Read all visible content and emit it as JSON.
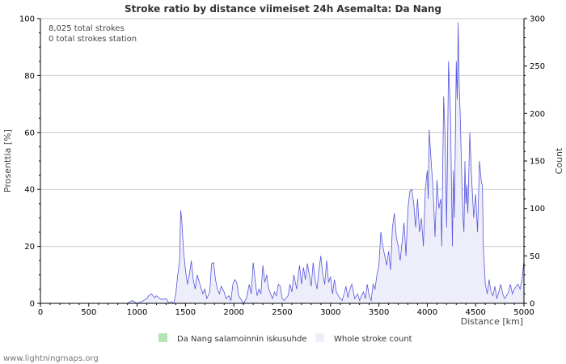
{
  "chart_data": {
    "type": "area",
    "title": "Stroke ratio by distance viimeiset 24h Asemalta: Da Nang",
    "xlabel": "Distance   [km]",
    "ylabel_left": "Prosenttia   [%]",
    "ylabel_right": "Count",
    "xlim": [
      0,
      5000
    ],
    "ylim_left": [
      0,
      100
    ],
    "ylim_right": [
      0,
      300
    ],
    "x_ticks": [
      0,
      500,
      1000,
      1500,
      2000,
      2500,
      3000,
      3500,
      4000,
      4500,
      5000
    ],
    "x_tick_labels": [
      "0",
      "500",
      "1000",
      "1500",
      "2000",
      "2500",
      "3000",
      "3500",
      "4000",
      "4500",
      "5000"
    ],
    "y_left_ticks": [
      0,
      20,
      40,
      60,
      80,
      100
    ],
    "y_left_tick_labels": [
      "0",
      "20",
      "40",
      "60",
      "80",
      "100"
    ],
    "y_right_ticks": [
      0,
      50,
      100,
      150,
      200,
      250,
      300
    ],
    "y_right_tick_labels": [
      "0",
      "50",
      "100",
      "150",
      "200",
      "250",
      "300"
    ],
    "grid": true,
    "annotations": [
      "8,025 total strokes",
      "0 total strokes station"
    ],
    "series": [
      {
        "name": "Da Nang salamoinnin iskusuhde",
        "axis": "left",
        "color": "#a8dca8",
        "x": [],
        "values": []
      },
      {
        "name": "Whole stroke count",
        "axis": "right",
        "color": "#5555dd",
        "fill": "#eeeefa",
        "x": [
          0,
          900,
          950,
          1000,
          1050,
          1100,
          1120,
          1150,
          1180,
          1200,
          1250,
          1300,
          1330,
          1350,
          1380,
          1400,
          1420,
          1440,
          1450,
          1460,
          1480,
          1500,
          1520,
          1540,
          1560,
          1580,
          1600,
          1620,
          1650,
          1680,
          1700,
          1720,
          1750,
          1770,
          1790,
          1810,
          1830,
          1850,
          1870,
          1900,
          1920,
          1950,
          1970,
          1990,
          2010,
          2030,
          2050,
          2100,
          2130,
          2160,
          2180,
          2200,
          2220,
          2240,
          2260,
          2280,
          2300,
          2320,
          2340,
          2360,
          2400,
          2420,
          2440,
          2460,
          2480,
          2500,
          2520,
          2560,
          2580,
          2600,
          2620,
          2650,
          2680,
          2700,
          2720,
          2740,
          2760,
          2780,
          2800,
          2820,
          2840,
          2860,
          2880,
          2900,
          2920,
          2940,
          2960,
          2980,
          3000,
          3020,
          3040,
          3060,
          3080,
          3100,
          3120,
          3140,
          3160,
          3180,
          3200,
          3220,
          3250,
          3280,
          3300,
          3320,
          3340,
          3360,
          3380,
          3400,
          3420,
          3440,
          3460,
          3480,
          3500,
          3520,
          3540,
          3560,
          3580,
          3600,
          3620,
          3640,
          3660,
          3680,
          3700,
          3720,
          3740,
          3760,
          3780,
          3800,
          3820,
          3840,
          3860,
          3880,
          3900,
          3920,
          3940,
          3960,
          3980,
          4000,
          4010,
          4020,
          4040,
          4060,
          4080,
          4100,
          4120,
          4140,
          4150,
          4160,
          4170,
          4180,
          4190,
          4200,
          4210,
          4220,
          4240,
          4260,
          4270,
          4280,
          4290,
          4300,
          4310,
          4320,
          4330,
          4340,
          4360,
          4370,
          4380,
          4390,
          4400,
          4410,
          4420,
          4440,
          4460,
          4480,
          4500,
          4520,
          4540,
          4560,
          4570,
          4580,
          4600,
          4620,
          4640,
          4660,
          4680,
          4700,
          4720,
          4740,
          4760,
          4780,
          4800,
          4820,
          4840,
          4860,
          4880,
          4900,
          4920,
          4940,
          4960,
          4980,
          5000
        ],
        "values": [
          0,
          0,
          3,
          0,
          2,
          5,
          8,
          10,
          6,
          8,
          4,
          5,
          0,
          2,
          0,
          10,
          30,
          45,
          98,
          90,
          55,
          35,
          20,
          30,
          45,
          25,
          15,
          30,
          20,
          10,
          15,
          5,
          12,
          42,
          43,
          25,
          15,
          10,
          18,
          12,
          5,
          8,
          3,
          20,
          25,
          22,
          8,
          0,
          5,
          20,
          10,
          43,
          25,
          8,
          15,
          10,
          40,
          22,
          30,
          15,
          5,
          12,
          8,
          20,
          18,
          5,
          3,
          8,
          20,
          12,
          30,
          15,
          40,
          20,
          38,
          25,
          42,
          30,
          18,
          43,
          25,
          15,
          35,
          50,
          30,
          20,
          45,
          22,
          28,
          10,
          25,
          12,
          8,
          5,
          3,
          10,
          18,
          6,
          15,
          20,
          5,
          10,
          3,
          8,
          12,
          5,
          20,
          8,
          3,
          20,
          15,
          30,
          40,
          75,
          60,
          50,
          40,
          55,
          35,
          80,
          95,
          70,
          60,
          45,
          65,
          85,
          50,
          100,
          118,
          120,
          105,
          80,
          110,
          75,
          90,
          60,
          120,
          140,
          110,
          183,
          150,
          120,
          70,
          130,
          100,
          110,
          60,
          140,
          218,
          190,
          150,
          80,
          160,
          255,
          200,
          60,
          140,
          90,
          170,
          255,
          215,
          296,
          230,
          200,
          120,
          90,
          75,
          150,
          105,
          125,
          95,
          180,
          130,
          90,
          115,
          75,
          150,
          127,
          125,
          60,
          20,
          10,
          25,
          12,
          8,
          18,
          5,
          12,
          20,
          10,
          5,
          8,
          12,
          20,
          10,
          15,
          18,
          20,
          15,
          25,
          45
        ]
      }
    ]
  },
  "legend": {
    "items": [
      {
        "label": "Da Nang salamoinnin iskusuhde",
        "color": "#b4e4b4"
      },
      {
        "label": "Whole stroke count",
        "color": "#eeeefa"
      }
    ]
  },
  "footer": "www.lightningmaps.org"
}
